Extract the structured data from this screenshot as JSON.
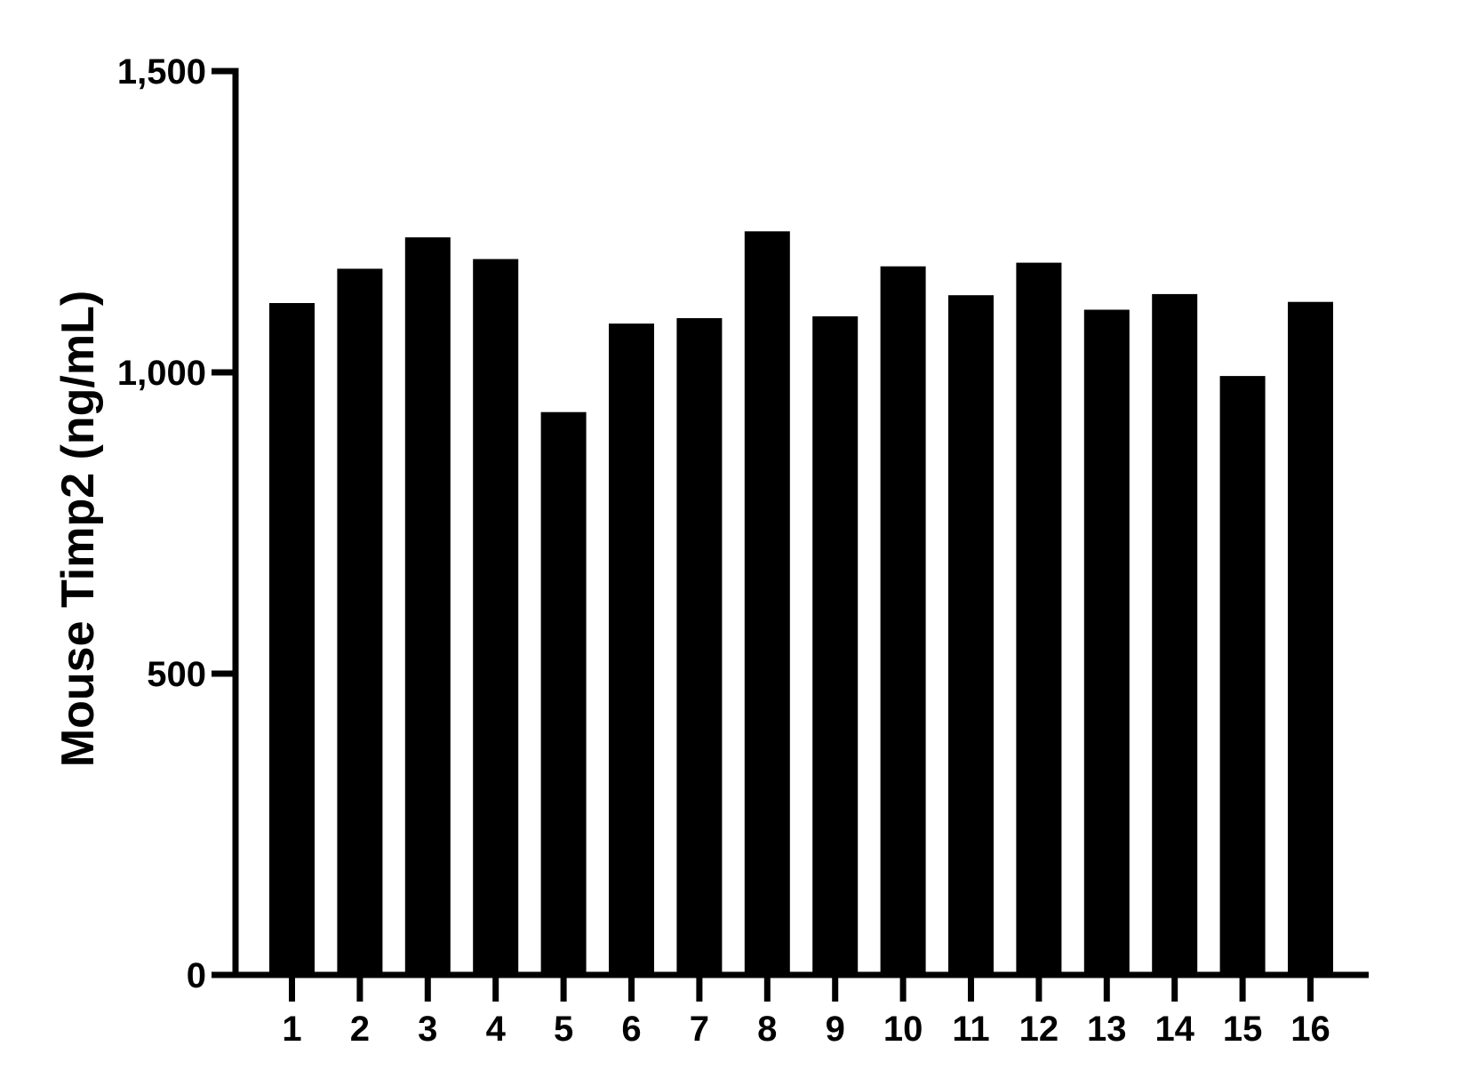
{
  "chart_data": {
    "type": "bar",
    "title": "",
    "xlabel": "",
    "ylabel": "Mouse Timp2 (ng/mL)",
    "categories": [
      "1",
      "2",
      "3",
      "4",
      "5",
      "6",
      "7",
      "8",
      "9",
      "10",
      "11",
      "12",
      "13",
      "14",
      "15",
      "16"
    ],
    "values": [
      1115,
      1172,
      1224,
      1188,
      934,
      1081,
      1090,
      1234,
      1093,
      1176,
      1128,
      1182,
      1104,
      1130,
      994,
      1117
    ],
    "ylim": [
      0,
      1500
    ],
    "yticks": [
      0,
      500,
      1000,
      1500
    ],
    "ytick_labels": [
      "0",
      "500",
      "1,000",
      "1,500"
    ],
    "grid": false,
    "legend": "none",
    "bar_color": "#000000",
    "axis_color": "#000000"
  }
}
